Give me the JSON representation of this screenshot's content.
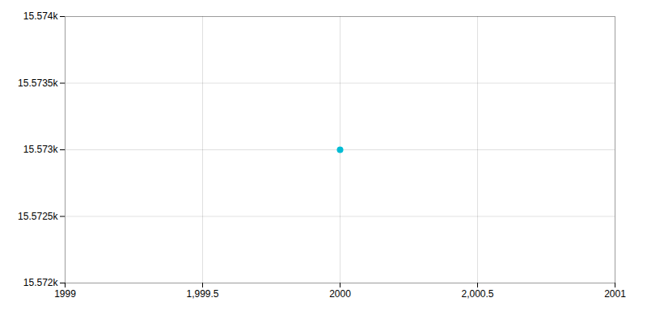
{
  "chart_data": {
    "type": "scatter",
    "x": [
      2000
    ],
    "values": [
      15573
    ],
    "color": "#00bcd4",
    "xlim": [
      1999,
      2001
    ],
    "ylim": [
      15572,
      15574
    ],
    "xticks": [
      1999,
      {
        "value": 1999.5,
        "label": "1,999.5"
      },
      2000,
      {
        "value": 2000.5,
        "label": "2,000.5"
      },
      2001
    ],
    "yticks": [
      {
        "value": 15572,
        "label": "15.572k"
      },
      {
        "value": 15572.5,
        "label": "15.5725k"
      },
      {
        "value": 15573,
        "label": "15.573k"
      },
      {
        "value": 15573.5,
        "label": "15.5735k"
      },
      {
        "value": 15574,
        "label": "15.574k"
      }
    ],
    "grid": true
  }
}
